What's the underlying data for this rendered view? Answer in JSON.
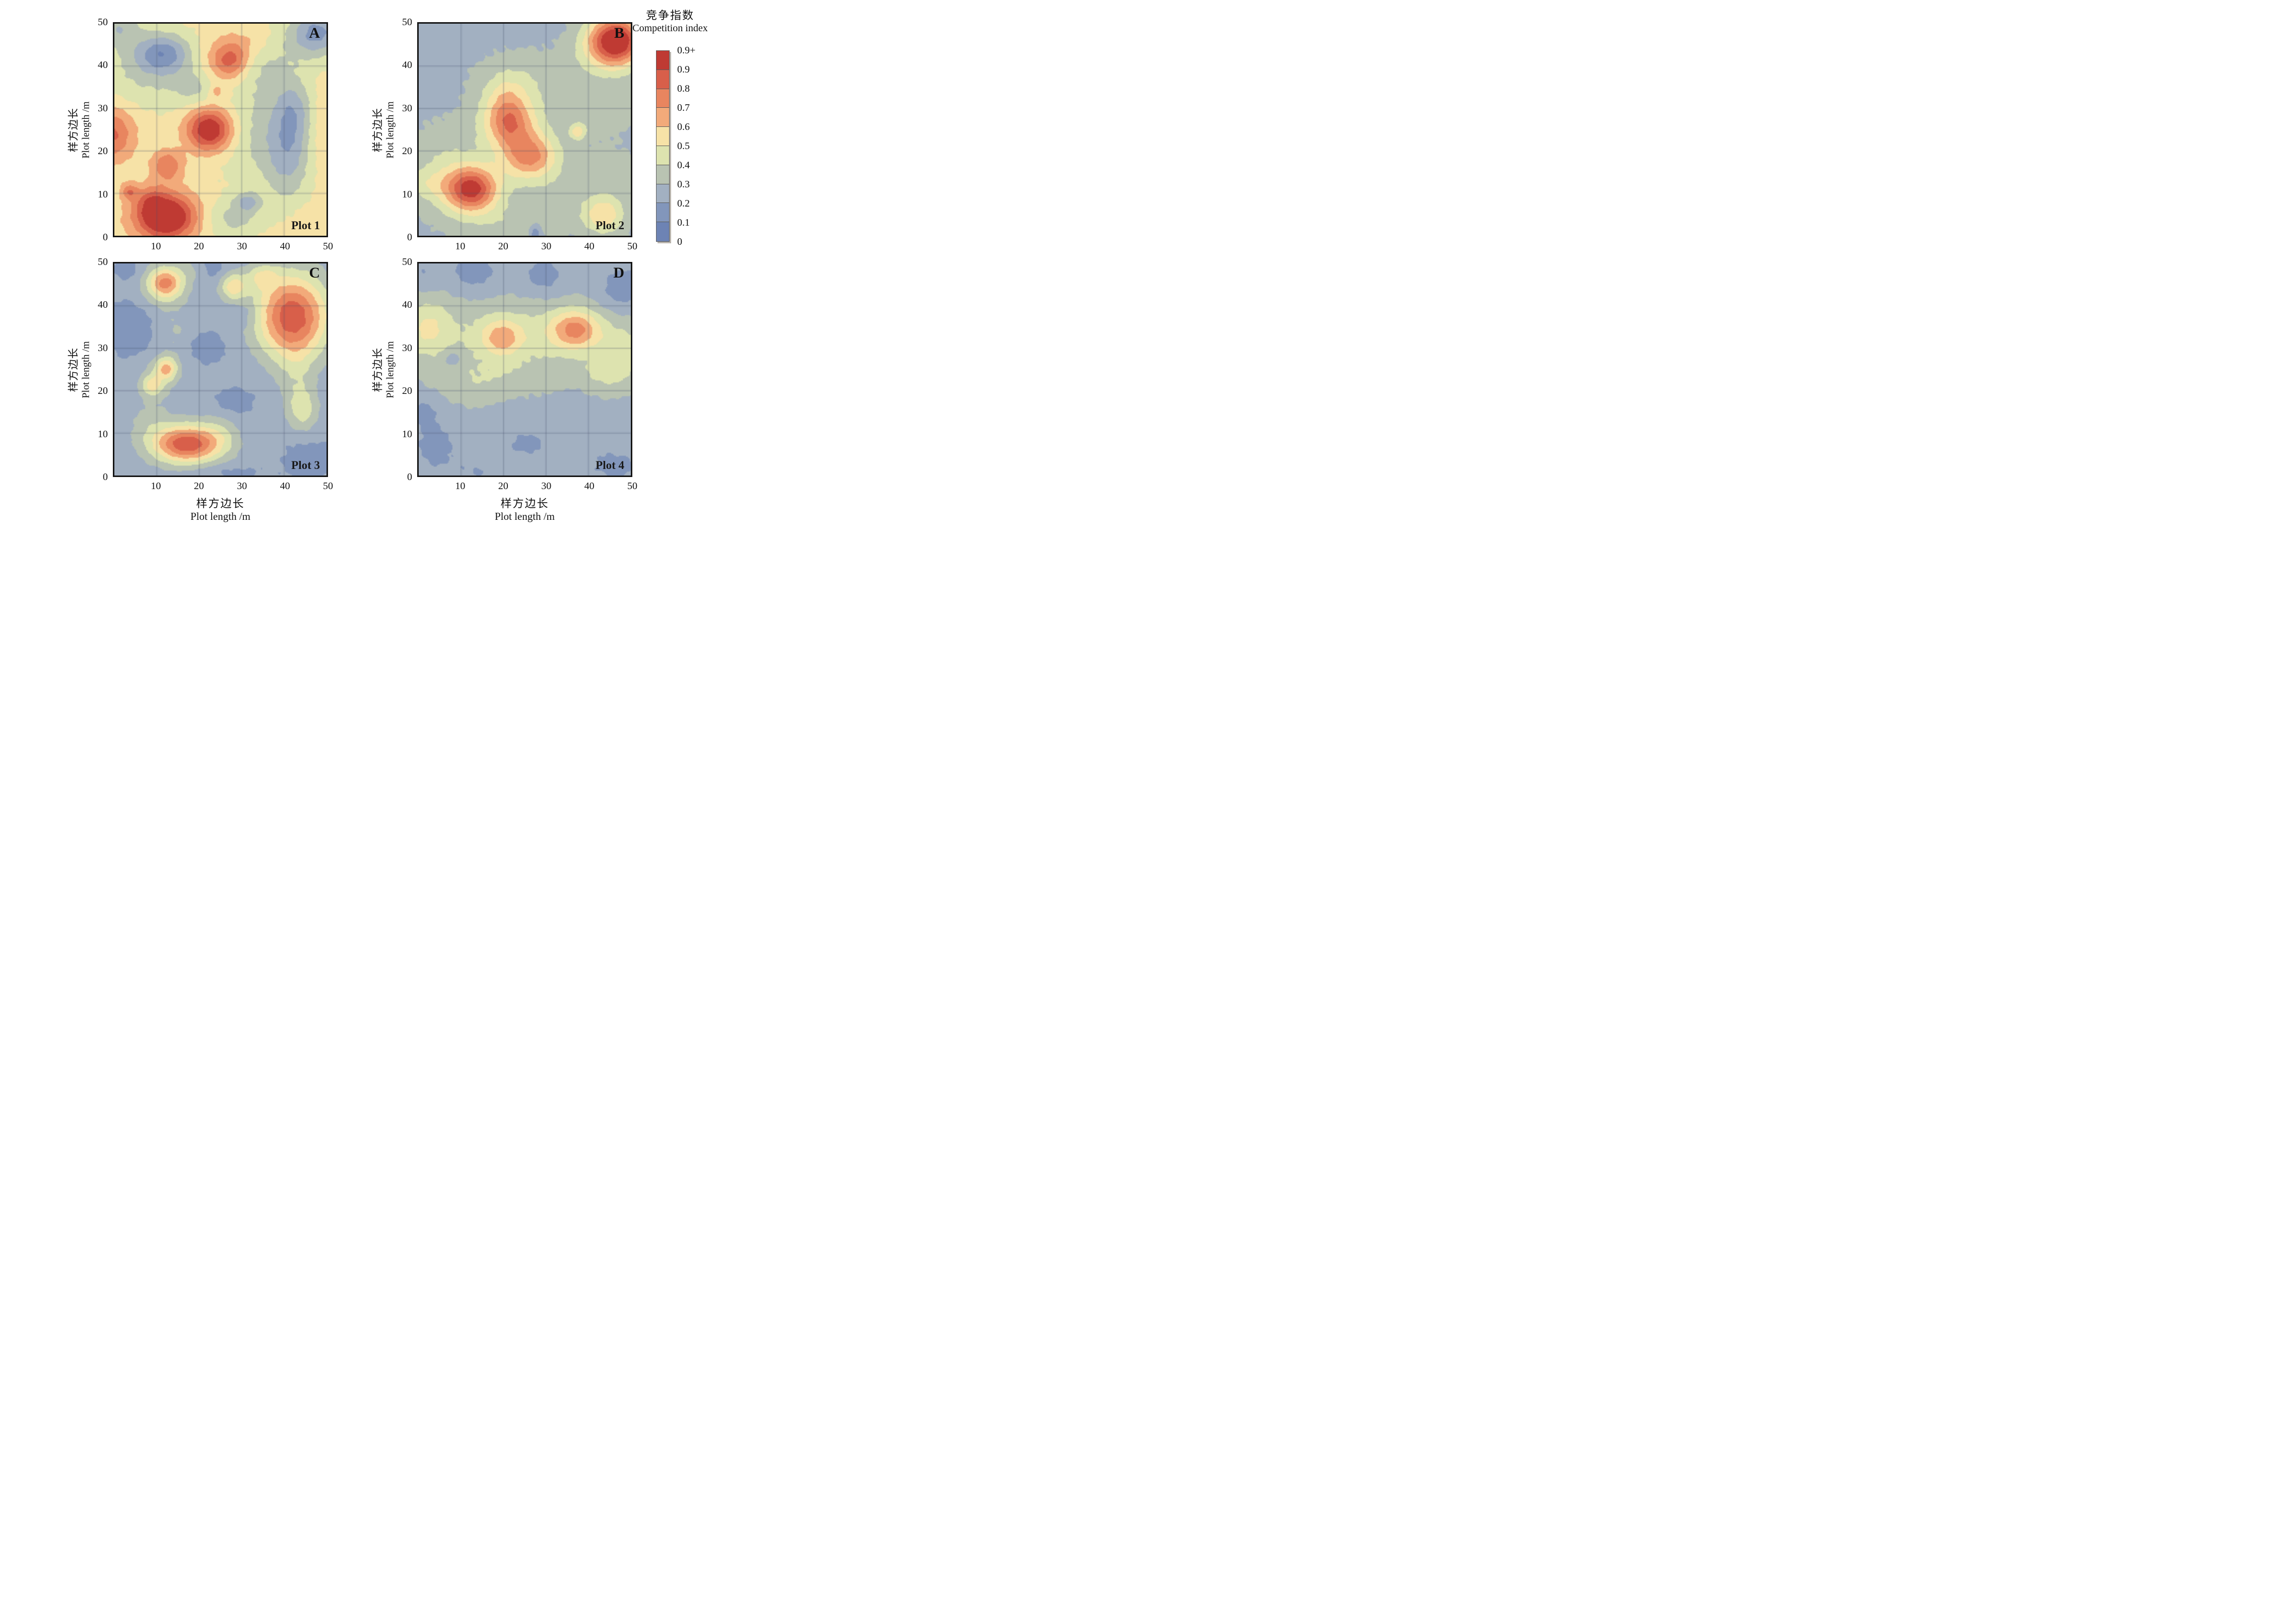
{
  "figure": {
    "background": "#ffffff",
    "frame_color": "#141414"
  },
  "legend": {
    "title_zh": "竞争指数",
    "title_en": "Competition index",
    "tick_labels": [
      "0.9+",
      "0.9",
      "0.8",
      "0.7",
      "0.6",
      "0.5",
      "0.4",
      "0.3",
      "0.2",
      "0.1",
      "0"
    ],
    "colors_top_to_bottom": [
      "#bf3a33",
      "#d85f4a",
      "#e8855f",
      "#f2aa7a",
      "#f6e2a7",
      "#dde3af",
      "#b9c3b2",
      "#a2b0c1",
      "#8296bb",
      "#6d83b4"
    ],
    "border_color": "#5a5a5a"
  },
  "axes": {
    "xlabel_zh": "样方边长",
    "xlabel_en": "Plot length /m",
    "ylabel_zh": "样方边长",
    "ylabel_en": "Plot length /m",
    "x_ticks": [
      10,
      20,
      30,
      40,
      50
    ],
    "y_ticks": [
      0,
      10,
      20,
      30,
      40,
      50
    ],
    "xlim": [
      0,
      50
    ],
    "ylim": [
      0,
      50
    ],
    "grid_step": 10,
    "grid_color": "rgba(75,82,112,0.55)"
  },
  "chart_data": [
    {
      "type": "heatmap",
      "subtype": "filled-contour",
      "panel": "A",
      "label": "Plot 1",
      "value_name": "Competition index",
      "xlim": [
        0,
        50
      ],
      "ylim": [
        0,
        50
      ],
      "levels": [
        0,
        0.1,
        0.2,
        0.3,
        0.4,
        0.5,
        0.6,
        0.7,
        0.8,
        0.9,
        1.0
      ],
      "model": "sum_of_gaussians",
      "bump_format": [
        "x",
        "y",
        "amplitude",
        "sigma_x",
        "sigma_y"
      ],
      "base": 0.53,
      "bumps": [
        [
          12,
          4.5,
          0.6,
          5.0,
          3.8
        ],
        [
          8.5,
          8.5,
          0.15,
          2.5,
          2.5
        ],
        [
          3.5,
          10.5,
          0.22,
          1.4,
          1.4
        ],
        [
          22.5,
          25,
          0.52,
          3.8,
          3.5
        ],
        [
          27.5,
          41.5,
          0.3,
          3.2,
          3.0
        ],
        [
          26.5,
          40,
          0.1,
          5.5,
          5.0
        ],
        [
          12.5,
          16.5,
          0.26,
          2.6,
          2.6
        ],
        [
          -1,
          24,
          0.3,
          4.0,
          4.5
        ],
        [
          24,
          34,
          0.13,
          1.2,
          1.2
        ],
        [
          49,
          25,
          0.1,
          3.0,
          8.0
        ],
        [
          46,
          3,
          0.04,
          5.0,
          3.5
        ],
        [
          33,
          46,
          0.09,
          4.0,
          3.0
        ],
        [
          11.5,
          43,
          -0.32,
          4.5,
          3.2
        ],
        [
          8,
          39,
          -0.15,
          8.0,
          6.0
        ],
        [
          1,
          49,
          -0.2,
          3.5,
          3.0
        ],
        [
          48,
          48,
          -0.3,
          4.0,
          3.5
        ],
        [
          44,
          46,
          -0.1,
          6.0,
          5.0
        ],
        [
          41,
          19,
          -0.18,
          3.5,
          8.0
        ],
        [
          42.5,
          30,
          -0.16,
          3.0,
          5.0
        ],
        [
          31.5,
          8,
          -0.22,
          2.2,
          1.6
        ],
        [
          37,
          24,
          -0.17,
          8.0,
          9.0
        ],
        [
          33,
          40,
          -0.14,
          5.0,
          5.0
        ],
        [
          28,
          4,
          -0.16,
          4.5,
          3.0
        ],
        [
          19,
          35,
          -0.14,
          3.5,
          3.0
        ]
      ]
    },
    {
      "type": "heatmap",
      "subtype": "filled-contour",
      "panel": "B",
      "label": "Plot 2",
      "value_name": "Competition index",
      "xlim": [
        0,
        50
      ],
      "ylim": [
        0,
        50
      ],
      "levels": [
        0,
        0.1,
        0.2,
        0.3,
        0.4,
        0.5,
        0.6,
        0.7,
        0.8,
        0.9,
        1.0
      ],
      "model": "sum_of_gaussians",
      "bump_format": [
        "x",
        "y",
        "amplitude",
        "sigma_x",
        "sigma_y"
      ],
      "base": 0.27,
      "bumps": [
        [
          12.5,
          11,
          0.56,
          4.2,
          3.6
        ],
        [
          10,
          10,
          0.12,
          7.0,
          5.0
        ],
        [
          2,
          12.5,
          0.1,
          3.5,
          2.5
        ],
        [
          21,
          27.5,
          0.4,
          4.0,
          4.2
        ],
        [
          26.5,
          18.5,
          0.38,
          4.5,
          3.8
        ],
        [
          23.5,
          23,
          0.05,
          4.0,
          4.0
        ],
        [
          23,
          24,
          0.12,
          7.0,
          7.5
        ],
        [
          20.5,
          34,
          0.08,
          3.5,
          3.0
        ],
        [
          46.5,
          46,
          0.75,
          4.5,
          4.0
        ],
        [
          43,
          42,
          0.1,
          6.0,
          5.0
        ],
        [
          43.5,
          5,
          0.32,
          3.5,
          3.2
        ],
        [
          37.5,
          24.5,
          0.26,
          1.3,
          1.3
        ],
        [
          6,
          18,
          0.1,
          6.0,
          6.0
        ],
        [
          24,
          37,
          0.1,
          7.0,
          4.5
        ],
        [
          42,
          29,
          0.09,
          6.0,
          4.0
        ],
        [
          22,
          3,
          0.09,
          8.0,
          3.5
        ],
        [
          33,
          9,
          0.08,
          4.0,
          4.0
        ],
        [
          45,
          15,
          0.08,
          5.0,
          4.0
        ],
        [
          27.5,
          0.5,
          -0.2,
          0.9,
          1.5
        ]
      ]
    },
    {
      "type": "heatmap",
      "subtype": "filled-contour",
      "panel": "C",
      "label": "Plot 3",
      "value_name": "Competition index",
      "xlim": [
        0,
        50
      ],
      "ylim": [
        0,
        50
      ],
      "levels": [
        0,
        0.1,
        0.2,
        0.3,
        0.4,
        0.5,
        0.6,
        0.7,
        0.8,
        0.9,
        1.0
      ],
      "model": "sum_of_gaussians",
      "bump_format": [
        "x",
        "y",
        "amplitude",
        "sigma_x",
        "sigma_y"
      ],
      "base": 0.22,
      "bumps": [
        [
          42,
          37.5,
          0.66,
          6.0,
          7.0
        ],
        [
          43,
          22,
          0.1,
          3.0,
          6.0
        ],
        [
          44.5,
          15.5,
          0.2,
          2.6,
          3.5
        ],
        [
          17,
          7.5,
          0.54,
          5.5,
          3.0
        ],
        [
          18,
          7,
          0.13,
          7.5,
          4.5
        ],
        [
          25,
          10,
          0.08,
          3.0,
          3.0
        ],
        [
          12,
          45.5,
          0.42,
          2.8,
          2.6
        ],
        [
          12,
          44,
          0.12,
          4.5,
          4.0
        ],
        [
          12.3,
          25.3,
          0.34,
          1.8,
          1.9
        ],
        [
          8.8,
          21.2,
          0.24,
          1.7,
          1.7
        ],
        [
          10.5,
          23,
          0.12,
          3.5,
          3.5
        ],
        [
          28,
          44.5,
          0.26,
          2.0,
          2.2
        ],
        [
          35,
          47,
          0.2,
          2.5,
          2.0
        ],
        [
          29,
          45,
          0.08,
          4.0,
          3.0
        ],
        [
          8,
          13,
          0.09,
          3.5,
          4.0
        ],
        [
          15,
          33,
          0.09,
          3.0,
          4.0
        ],
        [
          18.5,
          48.5,
          0.08,
          2.5,
          2.0
        ],
        [
          4,
          35,
          -0.1,
          3.5,
          4.5
        ],
        [
          3,
          48.5,
          -0.08,
          2.0,
          1.5
        ],
        [
          21,
          30.5,
          -0.09,
          3.5,
          2.5
        ],
        [
          28.5,
          17.5,
          -0.09,
          2.8,
          2.0
        ],
        [
          23,
          48.5,
          -0.08,
          2.8,
          2.0
        ],
        [
          31,
          38,
          -0.07,
          2.5,
          2.5
        ],
        [
          46,
          4,
          -0.08,
          4.0,
          3.0
        ],
        [
          25,
          1,
          -0.07,
          6.0,
          1.5
        ]
      ]
    },
    {
      "type": "heatmap",
      "subtype": "filled-contour",
      "panel": "D",
      "label": "Plot 4",
      "value_name": "Competition index",
      "xlim": [
        0,
        50
      ],
      "ylim": [
        0,
        50
      ],
      "levels": [
        0,
        0.1,
        0.2,
        0.3,
        0.4,
        0.5,
        0.6,
        0.7,
        0.8,
        0.9,
        1.0
      ],
      "model": "sum_of_gaussians",
      "bump_format": [
        "x",
        "y",
        "amplitude",
        "sigma_x",
        "sigma_y"
      ],
      "base": 0.27,
      "bumps": [
        [
          25,
          33,
          0.17,
          16,
          5.5
        ],
        [
          2,
          35,
          0.2,
          4.0,
          5.0
        ],
        [
          19.5,
          32.5,
          0.26,
          3.2,
          3.0
        ],
        [
          37,
          34.5,
          0.36,
          4.0,
          3.2
        ],
        [
          48,
          28,
          0.15,
          4.0,
          5.0
        ],
        [
          43,
          24,
          0.1,
          3.5,
          3.0
        ],
        [
          20,
          23,
          0.07,
          10,
          3.0
        ],
        [
          12,
          21,
          0.06,
          6.0,
          4.0
        ],
        [
          8,
          27.5,
          -0.12,
          1.5,
          1.5
        ],
        [
          13,
          48,
          -0.13,
          4.0,
          3.0
        ],
        [
          29.5,
          47,
          -0.12,
          3.5,
          3.0
        ],
        [
          48,
          44,
          -0.13,
          4.0,
          4.0
        ],
        [
          1,
          47,
          -0.08,
          2.5,
          2.5
        ],
        [
          4,
          7,
          -0.1,
          4.5,
          5.0
        ],
        [
          25.5,
          7.5,
          -0.1,
          4.0,
          2.5
        ],
        [
          46,
          2.5,
          -0.1,
          5.0,
          3.0
        ],
        [
          1.5,
          15.5,
          -0.08,
          2.5,
          2.5
        ],
        [
          14,
          1,
          -0.07,
          4.0,
          2.0
        ]
      ]
    }
  ]
}
